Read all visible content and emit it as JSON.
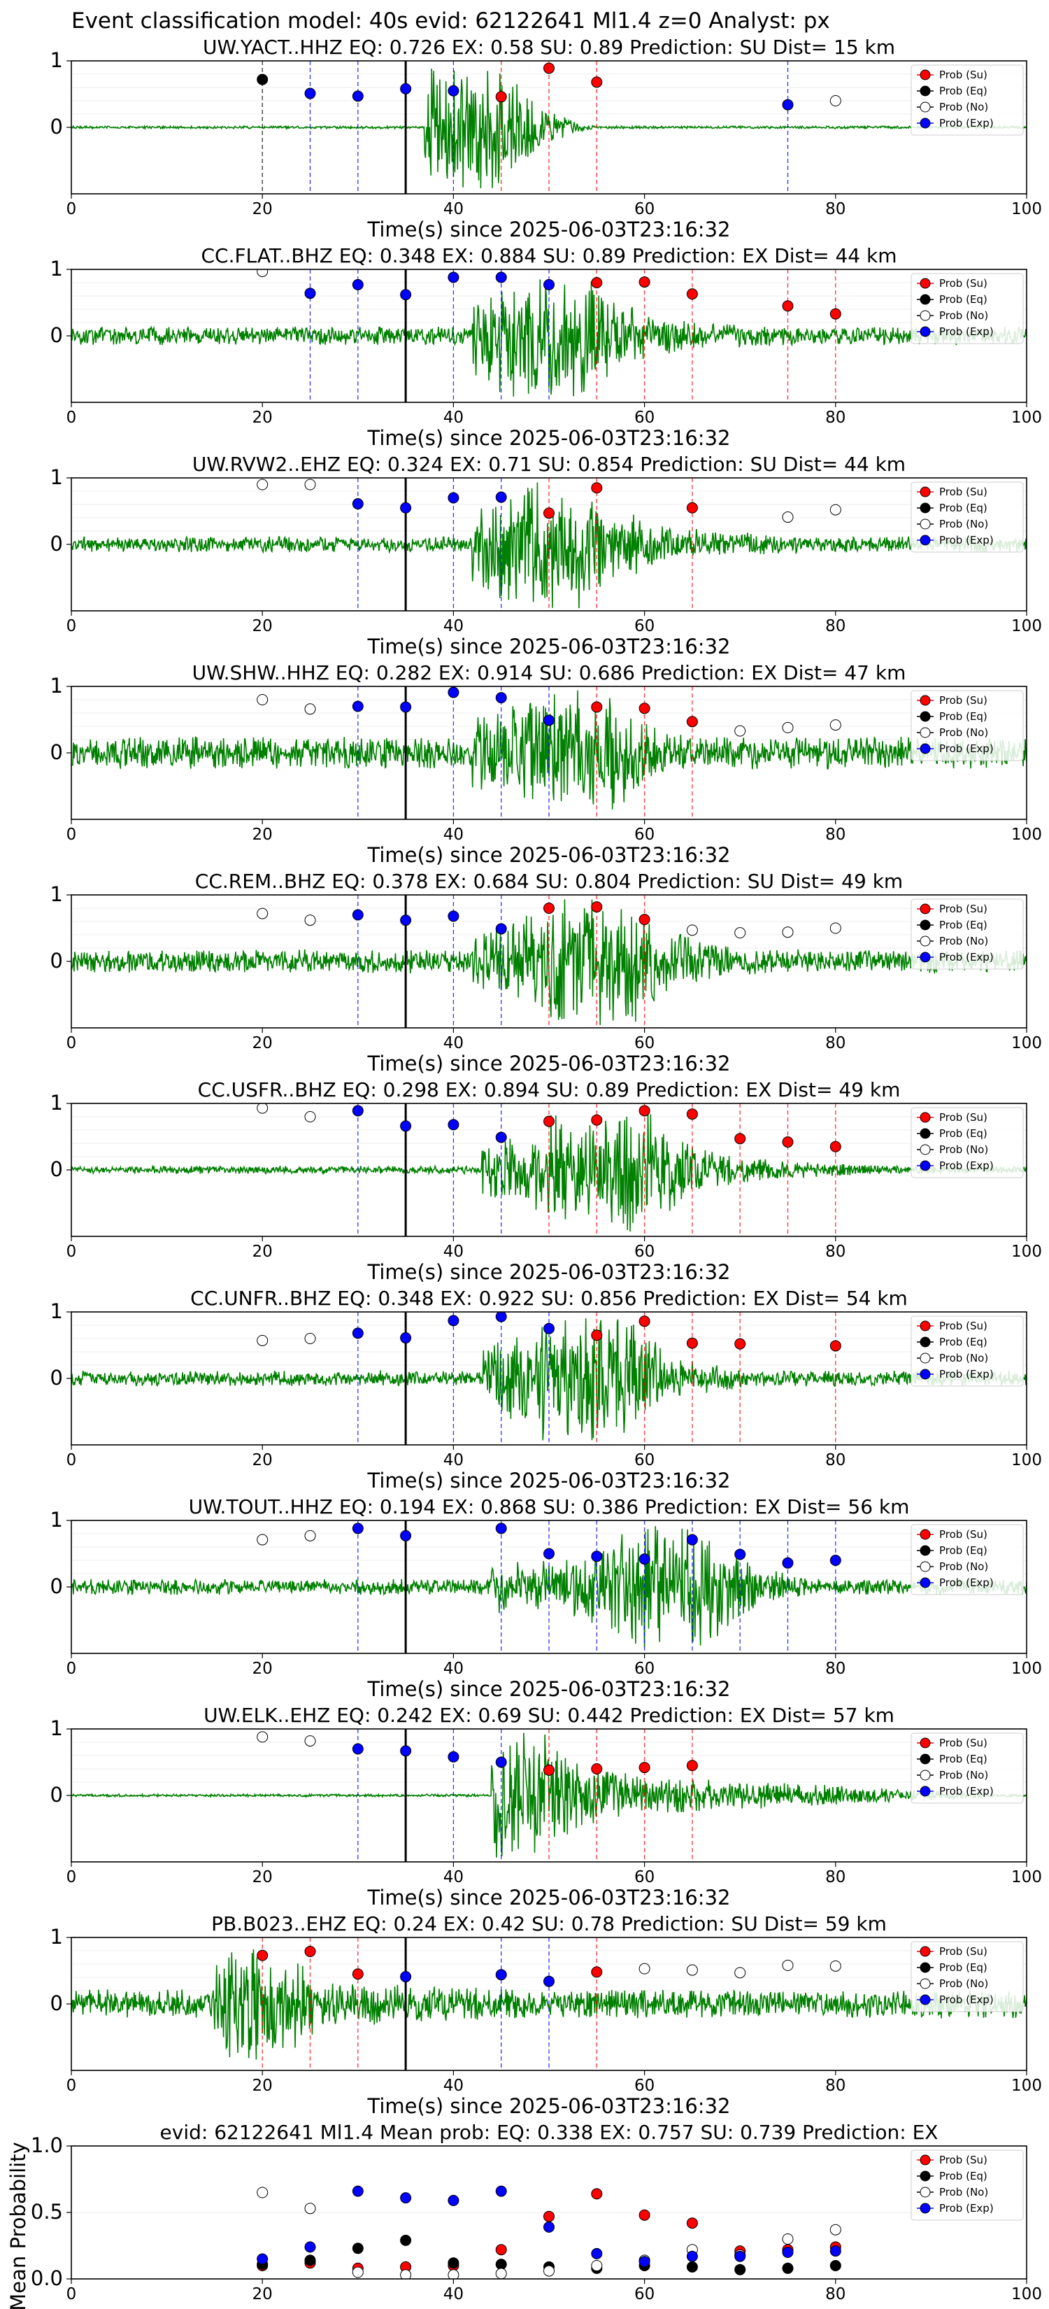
{
  "figure_title": "Event classification model: 40s evid: 62122641 Ml1.4 z=0 Analyst: px",
  "xlabel": "Time(s) since 2025-06-03T23:16:32",
  "legend_labels": [
    "Prob (Su)",
    "Prob (Eq)",
    "Prob (No)",
    "Prob (Exp)"
  ],
  "colors": {
    "su": "#ff0000",
    "eq": "#000000",
    "no": "#ffffff",
    "exp": "#0000ff",
    "trace": "#008000",
    "onset": "#000000"
  },
  "chart_data": [
    {
      "type": "scatter",
      "station": "UW.YACT..HHZ",
      "title": "UW.YACT..HHZ   EQ: 0.726  EX: 0.58  SU: 0.89   Prediction: SU    Dist= 15 km",
      "xlim": [
        0,
        100
      ],
      "ylim": [
        -1,
        1
      ],
      "xticks": [
        0,
        20,
        40,
        60,
        80,
        100
      ],
      "yticks": [
        1,
        0
      ],
      "onset_x": 35,
      "trace": {
        "start": 37,
        "end": 55,
        "background_amp": 0.02,
        "peak_amp": 0.9,
        "peak_at": 41
      },
      "points": [
        {
          "x": 20,
          "y": 0.72,
          "class": "eq"
        },
        {
          "x": 25,
          "y": 0.51,
          "class": "exp"
        },
        {
          "x": 30,
          "y": 0.47,
          "class": "exp"
        },
        {
          "x": 35,
          "y": 0.58,
          "class": "exp"
        },
        {
          "x": 40,
          "y": 0.55,
          "class": "exp"
        },
        {
          "x": 45,
          "y": 0.46,
          "class": "su"
        },
        {
          "x": 50,
          "y": 0.89,
          "class": "su"
        },
        {
          "x": 55,
          "y": 0.68,
          "class": "su"
        },
        {
          "x": 75,
          "y": 0.34,
          "class": "exp"
        },
        {
          "x": 80,
          "y": 0.4,
          "class": "no"
        }
      ]
    },
    {
      "type": "scatter",
      "station": "CC.FLAT..BHZ",
      "title": "CC.FLAT..BHZ   EQ: 0.348  EX: 0.884  SU: 0.89   Prediction: EX    Dist= 44 km",
      "xlim": [
        0,
        100
      ],
      "ylim": [
        -1,
        1
      ],
      "xticks": [
        0,
        20,
        40,
        60,
        80,
        100
      ],
      "yticks": [
        1,
        0
      ],
      "onset_x": 35,
      "trace": {
        "start": 42,
        "end": 95,
        "background_amp": 0.14,
        "peak_amp": 0.85,
        "peak_at": 50
      },
      "points": [
        {
          "x": 20,
          "y": 0.97,
          "class": "no"
        },
        {
          "x": 25,
          "y": 0.64,
          "class": "exp"
        },
        {
          "x": 30,
          "y": 0.77,
          "class": "exp"
        },
        {
          "x": 35,
          "y": 0.62,
          "class": "exp"
        },
        {
          "x": 40,
          "y": 0.88,
          "class": "exp"
        },
        {
          "x": 45,
          "y": 0.88,
          "class": "exp"
        },
        {
          "x": 50,
          "y": 0.77,
          "class": "exp"
        },
        {
          "x": 55,
          "y": 0.8,
          "class": "su"
        },
        {
          "x": 60,
          "y": 0.81,
          "class": "su"
        },
        {
          "x": 65,
          "y": 0.63,
          "class": "su"
        },
        {
          "x": 75,
          "y": 0.45,
          "class": "su"
        },
        {
          "x": 80,
          "y": 0.33,
          "class": "su"
        }
      ]
    },
    {
      "type": "scatter",
      "station": "UW.RVW2..EHZ",
      "title": "UW.RVW2..EHZ   EQ: 0.324  EX: 0.71  SU: 0.854   Prediction: SU    Dist= 44 km",
      "xlim": [
        0,
        100
      ],
      "ylim": [
        -1,
        1
      ],
      "xticks": [
        0,
        20,
        40,
        60,
        80,
        100
      ],
      "yticks": [
        1,
        0
      ],
      "onset_x": 35,
      "trace": {
        "start": 42,
        "end": 92,
        "background_amp": 0.12,
        "peak_amp": 0.95,
        "peak_at": 50
      },
      "points": [
        {
          "x": 20,
          "y": 0.9,
          "class": "no"
        },
        {
          "x": 25,
          "y": 0.9,
          "class": "no"
        },
        {
          "x": 30,
          "y": 0.61,
          "class": "exp"
        },
        {
          "x": 35,
          "y": 0.55,
          "class": "exp"
        },
        {
          "x": 40,
          "y": 0.7,
          "class": "exp"
        },
        {
          "x": 45,
          "y": 0.71,
          "class": "exp"
        },
        {
          "x": 50,
          "y": 0.47,
          "class": "su"
        },
        {
          "x": 55,
          "y": 0.85,
          "class": "su"
        },
        {
          "x": 65,
          "y": 0.55,
          "class": "su"
        },
        {
          "x": 75,
          "y": 0.41,
          "class": "no"
        },
        {
          "x": 80,
          "y": 0.52,
          "class": "no"
        }
      ]
    },
    {
      "type": "scatter",
      "station": "UW.SHW..HHZ",
      "title": "UW.SHW..HHZ   EQ: 0.282  EX: 0.914  SU: 0.686   Prediction: EX    Dist= 47 km",
      "xlim": [
        0,
        100
      ],
      "ylim": [
        -1,
        1
      ],
      "xticks": [
        0,
        20,
        40,
        60,
        80,
        100
      ],
      "yticks": [
        1,
        0
      ],
      "onset_x": 35,
      "trace": {
        "start": 42,
        "end": 90,
        "background_amp": 0.25,
        "peak_amp": 0.95,
        "peak_at": 52
      },
      "points": [
        {
          "x": 20,
          "y": 0.8,
          "class": "no"
        },
        {
          "x": 25,
          "y": 0.66,
          "class": "no"
        },
        {
          "x": 30,
          "y": 0.7,
          "class": "exp"
        },
        {
          "x": 35,
          "y": 0.69,
          "class": "exp"
        },
        {
          "x": 40,
          "y": 0.91,
          "class": "exp"
        },
        {
          "x": 45,
          "y": 0.83,
          "class": "exp"
        },
        {
          "x": 50,
          "y": 0.49,
          "class": "exp"
        },
        {
          "x": 55,
          "y": 0.69,
          "class": "su"
        },
        {
          "x": 60,
          "y": 0.67,
          "class": "su"
        },
        {
          "x": 65,
          "y": 0.47,
          "class": "su"
        },
        {
          "x": 70,
          "y": 0.33,
          "class": "no"
        },
        {
          "x": 75,
          "y": 0.38,
          "class": "no"
        },
        {
          "x": 80,
          "y": 0.42,
          "class": "no"
        }
      ]
    },
    {
      "type": "scatter",
      "station": "CC.REM..BHZ",
      "title": "CC.REM..BHZ   EQ: 0.378  EX: 0.684  SU: 0.804   Prediction: SU    Dist= 49 km",
      "xlim": [
        0,
        100
      ],
      "ylim": [
        -1,
        1
      ],
      "xticks": [
        0,
        20,
        40,
        60,
        80,
        100
      ],
      "yticks": [
        1,
        0
      ],
      "onset_x": 35,
      "trace": {
        "start": 42,
        "end": 95,
        "background_amp": 0.18,
        "peak_amp": 0.95,
        "peak_at": 55
      },
      "points": [
        {
          "x": 20,
          "y": 0.72,
          "class": "no"
        },
        {
          "x": 25,
          "y": 0.62,
          "class": "no"
        },
        {
          "x": 30,
          "y": 0.7,
          "class": "exp"
        },
        {
          "x": 35,
          "y": 0.62,
          "class": "exp"
        },
        {
          "x": 40,
          "y": 0.68,
          "class": "exp"
        },
        {
          "x": 45,
          "y": 0.49,
          "class": "exp"
        },
        {
          "x": 50,
          "y": 0.8,
          "class": "su"
        },
        {
          "x": 55,
          "y": 0.82,
          "class": "su"
        },
        {
          "x": 60,
          "y": 0.63,
          "class": "su"
        },
        {
          "x": 65,
          "y": 0.47,
          "class": "no"
        },
        {
          "x": 70,
          "y": 0.43,
          "class": "no"
        },
        {
          "x": 75,
          "y": 0.44,
          "class": "no"
        },
        {
          "x": 80,
          "y": 0.5,
          "class": "no"
        }
      ]
    },
    {
      "type": "scatter",
      "station": "CC.USFR..BHZ",
      "title": "CC.USFR..BHZ   EQ: 0.298  EX: 0.894  SU: 0.89   Prediction: EX    Dist= 49 km",
      "xlim": [
        0,
        100
      ],
      "ylim": [
        -1,
        1
      ],
      "xticks": [
        0,
        20,
        40,
        60,
        80,
        100
      ],
      "yticks": [
        1,
        0
      ],
      "onset_x": 35,
      "trace": {
        "start": 43,
        "end": 92,
        "background_amp": 0.06,
        "peak_amp": 0.95,
        "peak_at": 56
      },
      "points": [
        {
          "x": 20,
          "y": 0.93,
          "class": "no"
        },
        {
          "x": 25,
          "y": 0.8,
          "class": "no"
        },
        {
          "x": 30,
          "y": 0.89,
          "class": "exp"
        },
        {
          "x": 35,
          "y": 0.66,
          "class": "exp"
        },
        {
          "x": 40,
          "y": 0.68,
          "class": "exp"
        },
        {
          "x": 45,
          "y": 0.49,
          "class": "exp"
        },
        {
          "x": 50,
          "y": 0.73,
          "class": "su"
        },
        {
          "x": 55,
          "y": 0.75,
          "class": "su"
        },
        {
          "x": 60,
          "y": 0.89,
          "class": "su"
        },
        {
          "x": 65,
          "y": 0.84,
          "class": "su"
        },
        {
          "x": 70,
          "y": 0.47,
          "class": "su"
        },
        {
          "x": 75,
          "y": 0.42,
          "class": "su"
        },
        {
          "x": 80,
          "y": 0.35,
          "class": "su"
        }
      ]
    },
    {
      "type": "scatter",
      "station": "CC.UNFR..BHZ",
      "title": "CC.UNFR..BHZ   EQ: 0.348  EX: 0.922  SU: 0.856   Prediction: EX    Dist= 54 km",
      "xlim": [
        0,
        100
      ],
      "ylim": [
        -1,
        1
      ],
      "xticks": [
        0,
        20,
        40,
        60,
        80,
        100
      ],
      "yticks": [
        1,
        0
      ],
      "onset_x": 35,
      "trace": {
        "start": 43,
        "end": 85,
        "background_amp": 0.12,
        "peak_amp": 0.95,
        "peak_at": 54
      },
      "points": [
        {
          "x": 20,
          "y": 0.57,
          "class": "no"
        },
        {
          "x": 25,
          "y": 0.6,
          "class": "no"
        },
        {
          "x": 30,
          "y": 0.68,
          "class": "exp"
        },
        {
          "x": 35,
          "y": 0.61,
          "class": "exp"
        },
        {
          "x": 40,
          "y": 0.87,
          "class": "exp"
        },
        {
          "x": 45,
          "y": 0.93,
          "class": "exp"
        },
        {
          "x": 50,
          "y": 0.75,
          "class": "exp"
        },
        {
          "x": 55,
          "y": 0.65,
          "class": "su"
        },
        {
          "x": 60,
          "y": 0.86,
          "class": "su"
        },
        {
          "x": 65,
          "y": 0.53,
          "class": "su"
        },
        {
          "x": 70,
          "y": 0.52,
          "class": "su"
        },
        {
          "x": 80,
          "y": 0.49,
          "class": "su"
        }
      ]
    },
    {
      "type": "scatter",
      "station": "UW.TOUT..HHZ",
      "title": "UW.TOUT..HHZ   EQ: 0.194  EX: 0.868  SU: 0.386   Prediction: EX    Dist= 56 km",
      "xlim": [
        0,
        100
      ],
      "ylim": [
        -1,
        1
      ],
      "xticks": [
        0,
        20,
        40,
        60,
        80,
        100
      ],
      "yticks": [
        1,
        0
      ],
      "onset_x": 35,
      "trace": {
        "start": 44,
        "end": 92,
        "background_amp": 0.12,
        "peak_amp": 0.95,
        "peak_at": 63
      },
      "points": [
        {
          "x": 20,
          "y": 0.71,
          "class": "no"
        },
        {
          "x": 25,
          "y": 0.77,
          "class": "no"
        },
        {
          "x": 30,
          "y": 0.88,
          "class": "exp"
        },
        {
          "x": 35,
          "y": 0.77,
          "class": "exp"
        },
        {
          "x": 45,
          "y": 0.88,
          "class": "exp"
        },
        {
          "x": 50,
          "y": 0.5,
          "class": "exp"
        },
        {
          "x": 55,
          "y": 0.46,
          "class": "exp"
        },
        {
          "x": 60,
          "y": 0.42,
          "class": "exp"
        },
        {
          "x": 65,
          "y": 0.71,
          "class": "exp"
        },
        {
          "x": 70,
          "y": 0.49,
          "class": "exp"
        },
        {
          "x": 75,
          "y": 0.36,
          "class": "exp"
        },
        {
          "x": 80,
          "y": 0.4,
          "class": "exp"
        }
      ]
    },
    {
      "type": "scatter",
      "station": "UW.ELK..EHZ",
      "title": "UW.ELK..EHZ   EQ: 0.242  EX: 0.69  SU: 0.442   Prediction: EX    Dist= 57 km",
      "xlim": [
        0,
        100
      ],
      "ylim": [
        -1,
        1
      ],
      "xticks": [
        0,
        20,
        40,
        60,
        80,
        100
      ],
      "yticks": [
        1,
        0
      ],
      "onset_x": 35,
      "trace": {
        "start": 44,
        "end": 100,
        "background_amp": 0.02,
        "peak_amp": 0.95,
        "peak_at": 45
      },
      "points": [
        {
          "x": 20,
          "y": 0.88,
          "class": "no"
        },
        {
          "x": 25,
          "y": 0.82,
          "class": "no"
        },
        {
          "x": 30,
          "y": 0.7,
          "class": "exp"
        },
        {
          "x": 35,
          "y": 0.67,
          "class": "exp"
        },
        {
          "x": 40,
          "y": 0.58,
          "class": "exp"
        },
        {
          "x": 45,
          "y": 0.5,
          "class": "exp"
        },
        {
          "x": 50,
          "y": 0.38,
          "class": "su"
        },
        {
          "x": 55,
          "y": 0.4,
          "class": "su"
        },
        {
          "x": 60,
          "y": 0.42,
          "class": "su"
        },
        {
          "x": 65,
          "y": 0.45,
          "class": "su"
        }
      ]
    },
    {
      "type": "scatter",
      "station": "PB.B023..EHZ",
      "title": "PB.B023..EHZ   EQ: 0.24  EX: 0.42  SU: 0.78   Prediction: SU    Dist= 59 km",
      "xlim": [
        0,
        100
      ],
      "ylim": [
        -1,
        1
      ],
      "xticks": [
        0,
        20,
        40,
        60,
        80,
        100
      ],
      "yticks": [
        1,
        0
      ],
      "onset_x": 35,
      "trace": {
        "start": 15,
        "end": 95,
        "background_amp": 0.22,
        "peak_amp": 0.85,
        "peak_at": 17
      },
      "points": [
        {
          "x": 20,
          "y": 0.73,
          "class": "su"
        },
        {
          "x": 25,
          "y": 0.79,
          "class": "su"
        },
        {
          "x": 30,
          "y": 0.45,
          "class": "su"
        },
        {
          "x": 35,
          "y": 0.41,
          "class": "exp"
        },
        {
          "x": 45,
          "y": 0.44,
          "class": "exp"
        },
        {
          "x": 50,
          "y": 0.34,
          "class": "exp"
        },
        {
          "x": 55,
          "y": 0.48,
          "class": "su"
        },
        {
          "x": 60,
          "y": 0.53,
          "class": "no"
        },
        {
          "x": 65,
          "y": 0.51,
          "class": "no"
        },
        {
          "x": 70,
          "y": 0.47,
          "class": "no"
        },
        {
          "x": 75,
          "y": 0.58,
          "class": "no"
        },
        {
          "x": 80,
          "y": 0.57,
          "class": "no"
        }
      ]
    },
    {
      "type": "scatter",
      "title": "evid: 62122641   Ml1.4   Mean prob:   EQ: 0.338  EX: 0.757  SU: 0.739   Prediction: EX",
      "ylabel": "Mean Probability",
      "xlim": [
        0,
        100
      ],
      "ylim": [
        0,
        1
      ],
      "xticks": [
        0,
        20,
        40,
        60,
        80,
        100
      ],
      "yticks": [
        0.0,
        0.5,
        1.0
      ],
      "ytick_labels": [
        "0.0",
        "0.5",
        "1.0"
      ],
      "series": [
        {
          "name": "Prob (Su)",
          "class": "su",
          "x": [
            20,
            25,
            30,
            35,
            40,
            45,
            50,
            55,
            60,
            65,
            70,
            75,
            80
          ],
          "y": [
            0.1,
            0.12,
            0.08,
            0.09,
            0.1,
            0.22,
            0.47,
            0.64,
            0.48,
            0.42,
            0.21,
            0.22,
            0.24
          ]
        },
        {
          "name": "Prob (Eq)",
          "class": "eq",
          "x": [
            20,
            25,
            30,
            35,
            40,
            45,
            50,
            55,
            60,
            65,
            70,
            75,
            80
          ],
          "y": [
            0.11,
            0.14,
            0.23,
            0.29,
            0.12,
            0.11,
            0.09,
            0.08,
            0.1,
            0.09,
            0.07,
            0.08,
            0.1
          ]
        },
        {
          "name": "Prob (No)",
          "class": "no",
          "x": [
            20,
            25,
            30,
            35,
            40,
            45,
            50,
            55,
            60,
            65,
            70,
            75,
            80
          ],
          "y": [
            0.65,
            0.53,
            0.05,
            0.03,
            0.03,
            0.04,
            0.06,
            0.1,
            0.14,
            0.22,
            0.18,
            0.3,
            0.37
          ]
        },
        {
          "name": "Prob (Exp)",
          "class": "exp",
          "x": [
            20,
            25,
            30,
            35,
            40,
            45,
            50,
            55,
            60,
            65,
            70,
            75,
            80
          ],
          "y": [
            0.15,
            0.24,
            0.66,
            0.61,
            0.59,
            0.66,
            0.39,
            0.19,
            0.13,
            0.17,
            0.17,
            0.2,
            0.21
          ]
        }
      ]
    }
  ]
}
